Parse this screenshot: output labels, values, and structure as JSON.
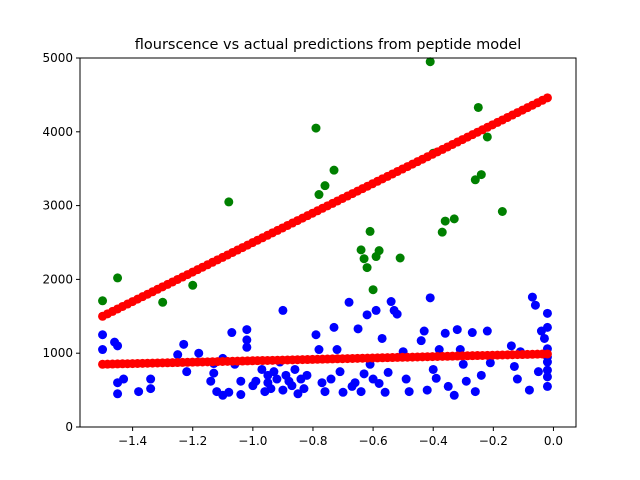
{
  "chart_data": {
    "type": "scatter",
    "title": "flourscence vs actual predictions from peptide model",
    "xlabel": "",
    "ylabel": "",
    "xlim": [
      -1.575,
      0.075
    ],
    "ylim": [
      0,
      5000
    ],
    "x_ticks": [
      "−1.4",
      "−1.2",
      "−1.0",
      "−0.8",
      "−0.6",
      "−0.4",
      "−0.2",
      "0.0"
    ],
    "x_tick_values": [
      -1.4,
      -1.2,
      -1.0,
      -0.8,
      -0.6,
      -0.4,
      -0.2,
      0.0
    ],
    "y_ticks": [
      "0",
      "1000",
      "2000",
      "3000",
      "4000",
      "5000"
    ],
    "y_tick_values": [
      0,
      1000,
      2000,
      3000,
      4000,
      5000
    ],
    "grid": false,
    "series": [
      {
        "color": "#0000ff",
        "points": [
          [
            -1.5,
            1250
          ],
          [
            -1.5,
            1050
          ],
          [
            -1.46,
            1150
          ],
          [
            -1.45,
            1100
          ],
          [
            -1.45,
            600
          ],
          [
            -1.45,
            450
          ],
          [
            -1.43,
            650
          ],
          [
            -1.38,
            480
          ],
          [
            -1.34,
            650
          ],
          [
            -1.34,
            520
          ],
          [
            -1.25,
            980
          ],
          [
            -1.23,
            1120
          ],
          [
            -1.22,
            750
          ],
          [
            -1.18,
            1000
          ],
          [
            -1.14,
            620
          ],
          [
            -1.13,
            860
          ],
          [
            -1.13,
            730
          ],
          [
            -1.12,
            480
          ],
          [
            -1.1,
            930
          ],
          [
            -1.1,
            430
          ],
          [
            -1.08,
            470
          ],
          [
            -1.07,
            1280
          ],
          [
            -1.06,
            850
          ],
          [
            -1.04,
            620
          ],
          [
            -1.04,
            440
          ],
          [
            -1.02,
            1320
          ],
          [
            -1.02,
            1180
          ],
          [
            -1.02,
            1080
          ],
          [
            -1.0,
            560
          ],
          [
            -0.99,
            620
          ],
          [
            -0.97,
            780
          ],
          [
            -0.96,
            480
          ],
          [
            -0.95,
            700
          ],
          [
            -0.95,
            600
          ],
          [
            -0.94,
            520
          ],
          [
            -0.93,
            750
          ],
          [
            -0.92,
            650
          ],
          [
            -0.91,
            880
          ],
          [
            -0.9,
            1580
          ],
          [
            -0.9,
            500
          ],
          [
            -0.89,
            700
          ],
          [
            -0.88,
            620
          ],
          [
            -0.87,
            560
          ],
          [
            -0.86,
            780
          ],
          [
            -0.85,
            450
          ],
          [
            -0.84,
            650
          ],
          [
            -0.83,
            520
          ],
          [
            -0.82,
            700
          ],
          [
            -0.79,
            1250
          ],
          [
            -0.78,
            1050
          ],
          [
            -0.77,
            600
          ],
          [
            -0.76,
            480
          ],
          [
            -0.74,
            650
          ],
          [
            -0.73,
            1350
          ],
          [
            -0.72,
            1050
          ],
          [
            -0.71,
            750
          ],
          [
            -0.7,
            470
          ],
          [
            -0.68,
            1690
          ],
          [
            -0.67,
            550
          ],
          [
            -0.66,
            600
          ],
          [
            -0.65,
            1330
          ],
          [
            -0.64,
            480
          ],
          [
            -0.63,
            720
          ],
          [
            -0.62,
            1520
          ],
          [
            -0.61,
            850
          ],
          [
            -0.6,
            650
          ],
          [
            -0.59,
            1580
          ],
          [
            -0.58,
            590
          ],
          [
            -0.57,
            1200
          ],
          [
            -0.56,
            470
          ],
          [
            -0.55,
            740
          ],
          [
            -0.54,
            1700
          ],
          [
            -0.53,
            1580
          ],
          [
            -0.52,
            1530
          ],
          [
            -0.5,
            1020
          ],
          [
            -0.49,
            650
          ],
          [
            -0.48,
            480
          ],
          [
            -0.44,
            1170
          ],
          [
            -0.43,
            1300
          ],
          [
            -0.42,
            500
          ],
          [
            -0.41,
            1750
          ],
          [
            -0.4,
            780
          ],
          [
            -0.39,
            660
          ],
          [
            -0.38,
            1050
          ],
          [
            -0.36,
            1270
          ],
          [
            -0.35,
            550
          ],
          [
            -0.33,
            430
          ],
          [
            -0.32,
            1320
          ],
          [
            -0.31,
            1050
          ],
          [
            -0.3,
            850
          ],
          [
            -0.29,
            620
          ],
          [
            -0.27,
            1280
          ],
          [
            -0.26,
            480
          ],
          [
            -0.24,
            700
          ],
          [
            -0.22,
            1300
          ],
          [
            -0.21,
            870
          ],
          [
            -0.14,
            1100
          ],
          [
            -0.13,
            820
          ],
          [
            -0.12,
            650
          ],
          [
            -0.11,
            1020
          ],
          [
            -0.08,
            500
          ],
          [
            -0.07,
            1760
          ],
          [
            -0.06,
            1650
          ],
          [
            -0.05,
            750
          ],
          [
            -0.04,
            1300
          ],
          [
            -0.03,
            1200
          ],
          [
            -0.02,
            1540
          ],
          [
            -0.02,
            1350
          ],
          [
            -0.02,
            1060
          ],
          [
            -0.02,
            950
          ],
          [
            -0.02,
            880
          ],
          [
            -0.02,
            770
          ],
          [
            -0.02,
            680
          ],
          [
            -0.02,
            550
          ]
        ]
      },
      {
        "color": "#008000",
        "points": [
          [
            -1.5,
            1710
          ],
          [
            -1.45,
            2020
          ],
          [
            -1.3,
            1690
          ],
          [
            -1.2,
            1920
          ],
          [
            -1.08,
            3050
          ],
          [
            -0.79,
            4050
          ],
          [
            -0.78,
            3150
          ],
          [
            -0.76,
            3270
          ],
          [
            -0.73,
            3480
          ],
          [
            -0.64,
            2400
          ],
          [
            -0.63,
            2280
          ],
          [
            -0.62,
            2160
          ],
          [
            -0.61,
            2650
          ],
          [
            -0.6,
            1860
          ],
          [
            -0.59,
            2310
          ],
          [
            -0.58,
            2390
          ],
          [
            -0.51,
            2290
          ],
          [
            -0.41,
            4950
          ],
          [
            -0.4,
            3710
          ],
          [
            -0.37,
            2640
          ],
          [
            -0.36,
            2790
          ],
          [
            -0.33,
            2820
          ],
          [
            -0.26,
            3350
          ],
          [
            -0.25,
            4330
          ],
          [
            -0.24,
            3420
          ],
          [
            -0.22,
            3930
          ],
          [
            -0.17,
            2920
          ]
        ]
      },
      {
        "color": "#ff0000",
        "line": [
          [
            -1.5,
            1500
          ],
          [
            -0.02,
            4460
          ]
        ],
        "n": 90
      },
      {
        "color": "#ff0000",
        "line": [
          [
            -1.5,
            850
          ],
          [
            -0.02,
            990
          ]
        ],
        "n": 90
      }
    ]
  }
}
